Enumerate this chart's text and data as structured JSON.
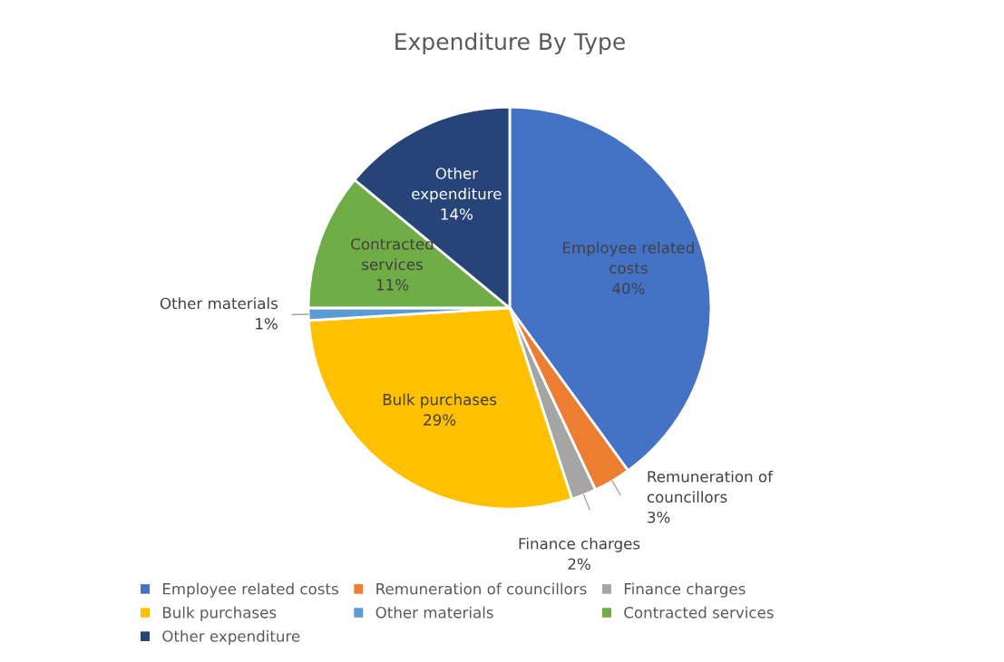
{
  "chart_data": {
    "type": "pie",
    "title": "Expenditure By Type",
    "categories": [
      "Employee related costs",
      "Remuneration of councillors",
      "Finance charges",
      "Bulk purchases",
      "Other materials",
      "Contracted services",
      "Other expenditure"
    ],
    "values": [
      40,
      3,
      2,
      29,
      1,
      11,
      14
    ],
    "value_labels": [
      "40%",
      "3%",
      "2%",
      "29%",
      "1%",
      "11%",
      "14%"
    ],
    "colors": [
      "#4472c4",
      "#ed7d31",
      "#a5a5a5",
      "#ffc000",
      "#5b9bd5",
      "#70ad47",
      "#264478"
    ],
    "legend": "bottom"
  }
}
